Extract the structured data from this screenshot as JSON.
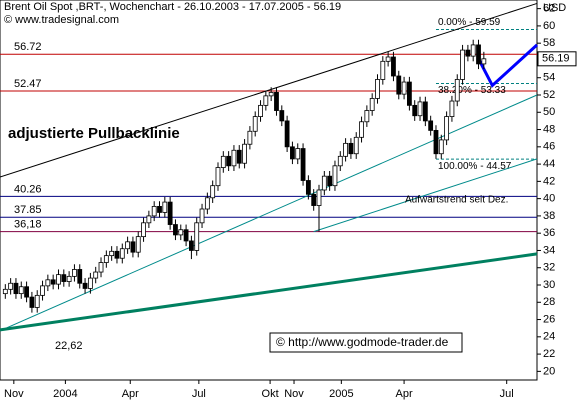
{
  "chart_data": {
    "type": "candlestick",
    "title": "Brent Oil Spot ,BRT-, Wochenchart - 26.10.2003 - 17.07.2005 - 56.19",
    "source": "© www.tradesignal.com",
    "y_label": "USD",
    "last_price": "56.19",
    "watermark": "© http://www.godmode-trader.de",
    "annotation_low": "22,62",
    "pullback_label": "adjustierte Pullbacklinie",
    "trend_label": "Aufwärtstrend seit Dez.",
    "xlim": [
      0,
      101
    ],
    "ylim": [
      19,
      63
    ],
    "yticks": [
      20,
      22,
      24,
      26,
      28,
      30,
      32,
      34,
      36,
      38,
      40,
      42,
      44,
      46,
      48,
      50,
      52,
      54,
      56,
      58,
      60,
      62
    ],
    "xticks": [
      {
        "value": 2.6,
        "label": "Nov"
      },
      {
        "value": 12.3,
        "label": "2004"
      },
      {
        "value": 24.5,
        "label": "Apr"
      },
      {
        "value": 37.4,
        "label": "Jul"
      },
      {
        "value": 50.8,
        "label": "Okt"
      },
      {
        "value": 55.3,
        "label": "Nov"
      },
      {
        "value": 64.2,
        "label": "2005"
      },
      {
        "value": 76,
        "label": "Apr"
      },
      {
        "value": 95.3,
        "label": "Jul"
      }
    ],
    "up_color": "#ffffff",
    "down_color": "#000000",
    "candles": [
      [
        29.0,
        30.1,
        28.4,
        29.5
      ],
      [
        29.5,
        30.8,
        28.9,
        30.2
      ],
      [
        30.2,
        30.8,
        28.4,
        29.0
      ],
      [
        29.0,
        30.4,
        28.4,
        29.8
      ],
      [
        29.8,
        30.4,
        28.0,
        28.6
      ],
      [
        28.6,
        29.2,
        26.8,
        27.4
      ],
      [
        27.4,
        29.4,
        26.8,
        28.8
      ],
      [
        28.8,
        30.5,
        28.2,
        29.9
      ],
      [
        29.9,
        31.2,
        29.3,
        30.6
      ],
      [
        30.6,
        31.2,
        29.5,
        30.1
      ],
      [
        30.1,
        31.8,
        29.5,
        31.2
      ],
      [
        31.2,
        31.8,
        29.8,
        30.4
      ],
      [
        30.4,
        31.6,
        29.8,
        31.0
      ],
      [
        31.0,
        32.4,
        30.4,
        31.8
      ],
      [
        31.8,
        32.4,
        29.6,
        30.2
      ],
      [
        30.2,
        30.8,
        29.0,
        29.6
      ],
      [
        29.6,
        31.4,
        29.0,
        30.8
      ],
      [
        30.8,
        32.1,
        30.2,
        31.5
      ],
      [
        31.5,
        33.2,
        30.9,
        32.6
      ],
      [
        32.6,
        34.0,
        32.0,
        33.4
      ],
      [
        33.4,
        34.5,
        32.8,
        33.9
      ],
      [
        33.9,
        34.5,
        32.5,
        33.1
      ],
      [
        33.1,
        34.8,
        32.5,
        34.2
      ],
      [
        34.2,
        35.6,
        33.6,
        35.0
      ],
      [
        35.0,
        35.6,
        33.2,
        33.8
      ],
      [
        33.8,
        36.2,
        33.2,
        35.6
      ],
      [
        35.6,
        37.8,
        35.0,
        37.2
      ],
      [
        37.2,
        38.6,
        36.6,
        38.0
      ],
      [
        38.0,
        39.7,
        37.4,
        39.1
      ],
      [
        39.1,
        39.7,
        37.8,
        38.4
      ],
      [
        38.4,
        40.2,
        37.8,
        39.6
      ],
      [
        39.6,
        40.2,
        36.4,
        37.0
      ],
      [
        37.0,
        37.6,
        35.2,
        35.8
      ],
      [
        35.8,
        37.0,
        35.2,
        36.4
      ],
      [
        36.4,
        37.0,
        34.5,
        35.1
      ],
      [
        35.1,
        35.7,
        33.0,
        34.0
      ],
      [
        34.0,
        37.8,
        33.4,
        37.2
      ],
      [
        37.2,
        39.4,
        36.6,
        38.8
      ],
      [
        38.8,
        40.7,
        38.2,
        40.1
      ],
      [
        40.1,
        42.1,
        39.5,
        41.5
      ],
      [
        41.5,
        44.2,
        40.9,
        43.6
      ],
      [
        43.6,
        45.5,
        43.0,
        44.9
      ],
      [
        44.9,
        45.5,
        43.2,
        43.8
      ],
      [
        43.8,
        46.2,
        43.2,
        45.6
      ],
      [
        45.6,
        46.2,
        43.5,
        44.1
      ],
      [
        44.1,
        46.9,
        43.5,
        46.3
      ],
      [
        46.3,
        48.4,
        45.7,
        47.8
      ],
      [
        47.8,
        50.1,
        47.2,
        49.5
      ],
      [
        49.5,
        51.4,
        48.9,
        50.8
      ],
      [
        50.8,
        52.5,
        50.2,
        51.9
      ],
      [
        51.9,
        52.9,
        51.3,
        52.3
      ],
      [
        52.3,
        52.9,
        49.6,
        50.2
      ],
      [
        50.2,
        50.8,
        48.4,
        49.0
      ],
      [
        49.0,
        49.6,
        45.4,
        46.0
      ],
      [
        46.0,
        46.6,
        44.0,
        44.6
      ],
      [
        44.6,
        46.4,
        44.0,
        45.8
      ],
      [
        45.8,
        46.4,
        41.5,
        42.1
      ],
      [
        42.1,
        42.7,
        39.9,
        40.5
      ],
      [
        40.5,
        41.1,
        38.6,
        39.2
      ],
      [
        39.2,
        41.6,
        36.2,
        41.0
      ],
      [
        41.0,
        43.2,
        40.4,
        42.6
      ],
      [
        42.6,
        43.2,
        40.9,
        41.5
      ],
      [
        41.5,
        44.4,
        40.9,
        43.8
      ],
      [
        43.8,
        45.5,
        43.2,
        44.9
      ],
      [
        44.9,
        47.0,
        44.3,
        46.4
      ],
      [
        46.4,
        47.0,
        44.6,
        45.2
      ],
      [
        45.2,
        47.7,
        44.6,
        47.1
      ],
      [
        47.1,
        49.5,
        46.5,
        48.9
      ],
      [
        48.9,
        50.8,
        48.3,
        50.2
      ],
      [
        50.2,
        52.2,
        49.6,
        51.6
      ],
      [
        51.6,
        54.4,
        51.0,
        53.8
      ],
      [
        53.8,
        56.5,
        53.2,
        55.9
      ],
      [
        55.9,
        57.0,
        55.3,
        56.4
      ],
      [
        56.4,
        57.0,
        53.6,
        54.2
      ],
      [
        54.2,
        54.8,
        51.5,
        52.1
      ],
      [
        52.1,
        54.1,
        51.5,
        53.5
      ],
      [
        53.5,
        54.1,
        50.2,
        50.8
      ],
      [
        50.8,
        51.4,
        49.0,
        49.6
      ],
      [
        49.6,
        51.8,
        49.0,
        51.2
      ],
      [
        51.2,
        51.8,
        48.4,
        49.0
      ],
      [
        49.0,
        49.6,
        47.3,
        47.9
      ],
      [
        47.9,
        48.5,
        44.6,
        45.2
      ],
      [
        45.2,
        47.4,
        44.6,
        46.8
      ],
      [
        46.8,
        50.1,
        46.2,
        49.5
      ],
      [
        49.5,
        51.9,
        48.9,
        51.3
      ],
      [
        51.3,
        54.4,
        50.7,
        53.8
      ],
      [
        53.8,
        57.8,
        53.2,
        57.2
      ],
      [
        57.2,
        57.8,
        55.9,
        56.5
      ],
      [
        56.5,
        58.4,
        55.9,
        57.8
      ],
      [
        57.8,
        58.4,
        55.0,
        55.6
      ],
      [
        55.6,
        57.0,
        55.0,
        56.19
      ]
    ],
    "levels": [
      {
        "value": 56.72,
        "label": "56.72",
        "color": "#c00000"
      },
      {
        "value": 52.47,
        "label": "52.47",
        "color": "#c00000"
      },
      {
        "value": 40.26,
        "label": "40.26",
        "color": "#000080"
      },
      {
        "value": 37.85,
        "label": "37.85",
        "color": "#000080"
      },
      {
        "value": 36.18,
        "label": "36,18",
        "color": "#800040"
      }
    ],
    "fibs": [
      {
        "value": 59.59,
        "label": "0.00% - 59.59"
      },
      {
        "value": 53.33,
        "label": "38.20% - 53.33"
      },
      {
        "value": 44.57,
        "label": "100.00% - 44.57"
      }
    ],
    "fib_color": "#008080",
    "lines": [
      {
        "x": [
          0,
          101
        ],
        "y": [
          42.5,
          62.6
        ],
        "color": "#000000",
        "width": 1
      },
      {
        "x": [
          0,
          101
        ],
        "y": [
          24.7,
          52.0
        ],
        "color": "#008b8b",
        "width": 1
      },
      {
        "x": [
          59,
          101
        ],
        "y": [
          36.18,
          44.6
        ],
        "color": "#008b8b",
        "width": 1
      },
      {
        "x": [
          0,
          101
        ],
        "y": [
          24.8,
          33.6
        ],
        "color": "#008060",
        "width": 3
      },
      {
        "x": [
          90,
          92.6,
          101
        ],
        "y": [
          56.19,
          53.1,
          57.8
        ],
        "color": "#0000ff",
        "width": 3
      }
    ]
  }
}
